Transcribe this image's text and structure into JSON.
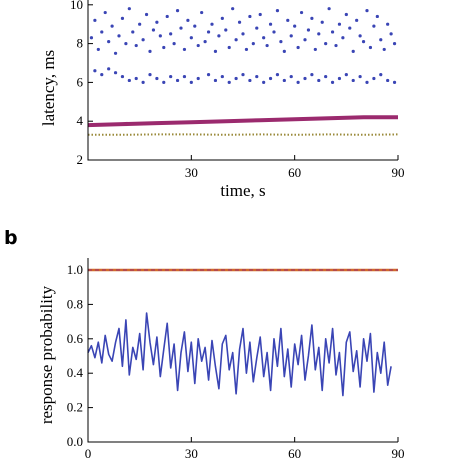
{
  "chart_data": [
    {
      "panel_label": "",
      "type": "scatter",
      "xlabel": "time, s",
      "ylabel": "latency, ms",
      "xlim": [
        0,
        90
      ],
      "ylim": [
        2,
        10
      ],
      "xticks": [
        "30",
        "60",
        "90"
      ],
      "yticks": [
        "2",
        "4",
        "6",
        "8",
        "10"
      ],
      "colors": {
        "dots": "#3a45b5",
        "line_top": "#9b2a6e",
        "line_bottom": "#9a8a3a"
      },
      "series": [
        {
          "values": [
            [
              1,
              8.3
            ],
            [
              2,
              9.2
            ],
            [
              3,
              7.7
            ],
            [
              4,
              8.6
            ],
            [
              5,
              9.6
            ],
            [
              6,
              8.1
            ],
            [
              7,
              8.9
            ],
            [
              8,
              7.5
            ],
            [
              9,
              8.4
            ],
            [
              10,
              9.3
            ],
            [
              11,
              8.0
            ],
            [
              12,
              9.8
            ],
            [
              13,
              8.6
            ],
            [
              14,
              7.9
            ],
            [
              15,
              9.0
            ],
            [
              16,
              8.2
            ],
            [
              17,
              9.5
            ],
            [
              18,
              7.6
            ],
            [
              19,
              8.7
            ],
            [
              20,
              9.1
            ],
            [
              21,
              8.4
            ],
            [
              22,
              7.8
            ],
            [
              23,
              9.4
            ],
            [
              24,
              8.5
            ],
            [
              25,
              8.0
            ],
            [
              26,
              9.7
            ],
            [
              27,
              8.8
            ],
            [
              28,
              7.7
            ],
            [
              29,
              9.2
            ],
            [
              30,
              8.3
            ],
            [
              31,
              8.9
            ],
            [
              32,
              7.9
            ],
            [
              33,
              9.6
            ],
            [
              34,
              8.1
            ],
            [
              35,
              8.6
            ],
            [
              36,
              9.0
            ],
            [
              37,
              7.6
            ],
            [
              38,
              8.4
            ],
            [
              39,
              9.3
            ],
            [
              40,
              8.7
            ],
            [
              41,
              7.8
            ],
            [
              42,
              9.8
            ],
            [
              43,
              8.2
            ],
            [
              44,
              9.1
            ],
            [
              45,
              8.5
            ],
            [
              46,
              7.7
            ],
            [
              47,
              9.4
            ],
            [
              48,
              8.0
            ],
            [
              49,
              8.8
            ],
            [
              50,
              9.5
            ],
            [
              51,
              8.3
            ],
            [
              52,
              7.9
            ],
            [
              53,
              9.0
            ],
            [
              54,
              8.6
            ],
            [
              55,
              9.7
            ],
            [
              56,
              8.1
            ],
            [
              57,
              7.6
            ],
            [
              58,
              9.2
            ],
            [
              59,
              8.4
            ],
            [
              60,
              8.9
            ],
            [
              61,
              7.8
            ],
            [
              62,
              9.6
            ],
            [
              63,
              8.2
            ],
            [
              64,
              8.7
            ],
            [
              65,
              9.3
            ],
            [
              66,
              7.7
            ],
            [
              67,
              8.5
            ],
            [
              68,
              9.1
            ],
            [
              69,
              8.0
            ],
            [
              70,
              9.8
            ],
            [
              71,
              8.6
            ],
            [
              72,
              7.9
            ],
            [
              73,
              9.0
            ],
            [
              74,
              8.3
            ],
            [
              75,
              9.5
            ],
            [
              76,
              8.8
            ],
            [
              77,
              7.6
            ],
            [
              78,
              9.2
            ],
            [
              79,
              8.4
            ],
            [
              80,
              8.1
            ],
            [
              81,
              9.7
            ],
            [
              82,
              7.8
            ],
            [
              83,
              8.9
            ],
            [
              84,
              9.4
            ],
            [
              85,
              8.2
            ],
            [
              86,
              7.7
            ],
            [
              87,
              9.0
            ],
            [
              88,
              8.5
            ],
            [
              89,
              8.0
            ],
            [
              2,
              6.6
            ],
            [
              4,
              6.4
            ],
            [
              6,
              6.7
            ],
            [
              8,
              6.5
            ],
            [
              10,
              6.3
            ],
            [
              12,
              6.1
            ],
            [
              14,
              6.2
            ],
            [
              16,
              6.0
            ],
            [
              18,
              6.4
            ],
            [
              20,
              6.2
            ],
            [
              22,
              6.0
            ],
            [
              24,
              6.3
            ],
            [
              26,
              6.1
            ],
            [
              28,
              6.3
            ],
            [
              30,
              6.0
            ],
            [
              32,
              6.2
            ],
            [
              35,
              6.4
            ],
            [
              37,
              6.1
            ],
            [
              39,
              6.3
            ],
            [
              41,
              6.0
            ],
            [
              43,
              6.2
            ],
            [
              45,
              6.4
            ],
            [
              47,
              6.1
            ],
            [
              49,
              6.3
            ],
            [
              51,
              6.0
            ],
            [
              53,
              6.2
            ],
            [
              55,
              6.4
            ],
            [
              57,
              6.1
            ],
            [
              59,
              6.3
            ],
            [
              61,
              6.0
            ],
            [
              63,
              6.2
            ],
            [
              65,
              6.4
            ],
            [
              67,
              6.1
            ],
            [
              69,
              6.3
            ],
            [
              71,
              6.0
            ],
            [
              73,
              6.2
            ],
            [
              75,
              6.4
            ],
            [
              77,
              6.1
            ],
            [
              79,
              6.3
            ],
            [
              81,
              6.0
            ],
            [
              83,
              6.2
            ],
            [
              85,
              6.4
            ],
            [
              87,
              6.1
            ],
            [
              89,
              6.0
            ]
          ]
        },
        {
          "values": [
            [
              0,
              3.8
            ],
            [
              10,
              3.85
            ],
            [
              20,
              3.9
            ],
            [
              30,
              3.95
            ],
            [
              40,
              4.0
            ],
            [
              50,
              4.05
            ],
            [
              60,
              4.1
            ],
            [
              70,
              4.15
            ],
            [
              80,
              4.2
            ],
            [
              90,
              4.2
            ]
          ]
        },
        {
          "values": [
            [
              0,
              3.3
            ],
            [
              10,
              3.3
            ],
            [
              20,
              3.32
            ],
            [
              30,
              3.32
            ],
            [
              40,
              3.3
            ],
            [
              50,
              3.32
            ],
            [
              60,
              3.3
            ],
            [
              70,
              3.32
            ],
            [
              80,
              3.3
            ],
            [
              90,
              3.32
            ]
          ]
        }
      ]
    },
    {
      "panel_label": "b",
      "type": "line",
      "xlabel": "",
      "ylabel": "response probability",
      "xlim": [
        0,
        90
      ],
      "ylim": [
        0,
        1.0
      ],
      "xticks": [
        "0",
        "30",
        "60",
        "90"
      ],
      "yticks": [
        "0.0",
        "0.2",
        "0.4",
        "0.6",
        "0.8",
        "1.0"
      ],
      "colors": {
        "line_main": "#3a45b5",
        "line_flat_a": "#d06a2a",
        "line_flat_b": "#9b2a6e"
      },
      "series": [
        {
          "values": [
            [
              0,
              0.52
            ],
            [
              1,
              0.56
            ],
            [
              2,
              0.49
            ],
            [
              3,
              0.58
            ],
            [
              4,
              0.46
            ],
            [
              5,
              0.62
            ],
            [
              6,
              0.51
            ],
            [
              7,
              0.47
            ],
            [
              8,
              0.58
            ],
            [
              9,
              0.66
            ],
            [
              10,
              0.44
            ],
            [
              11,
              0.71
            ],
            [
              12,
              0.39
            ],
            [
              13,
              0.55
            ],
            [
              14,
              0.48
            ],
            [
              15,
              0.63
            ],
            [
              16,
              0.42
            ],
            [
              17,
              0.75
            ],
            [
              18,
              0.58
            ],
            [
              19,
              0.45
            ],
            [
              20,
              0.61
            ],
            [
              21,
              0.38
            ],
            [
              22,
              0.54
            ],
            [
              23,
              0.69
            ],
            [
              24,
              0.43
            ],
            [
              25,
              0.57
            ],
            [
              26,
              0.3
            ],
            [
              27,
              0.52
            ],
            [
              28,
              0.64
            ],
            [
              29,
              0.41
            ],
            [
              30,
              0.58
            ],
            [
              31,
              0.34
            ],
            [
              32,
              0.6
            ],
            [
              33,
              0.47
            ],
            [
              34,
              0.55
            ],
            [
              35,
              0.36
            ],
            [
              36,
              0.59
            ],
            [
              37,
              0.44
            ],
            [
              38,
              0.31
            ],
            [
              39,
              0.57
            ],
            [
              40,
              0.62
            ],
            [
              41,
              0.42
            ],
            [
              42,
              0.52
            ],
            [
              43,
              0.28
            ],
            [
              44,
              0.54
            ],
            [
              45,
              0.66
            ],
            [
              46,
              0.4
            ],
            [
              47,
              0.58
            ],
            [
              48,
              0.35
            ],
            [
              49,
              0.49
            ],
            [
              50,
              0.61
            ],
            [
              51,
              0.38
            ],
            [
              52,
              0.52
            ],
            [
              53,
              0.3
            ],
            [
              54,
              0.6
            ],
            [
              55,
              0.44
            ],
            [
              56,
              0.66
            ],
            [
              57,
              0.38
            ],
            [
              58,
              0.54
            ],
            [
              59,
              0.32
            ],
            [
              60,
              0.57
            ],
            [
              61,
              0.45
            ],
            [
              62,
              0.62
            ],
            [
              63,
              0.36
            ],
            [
              64,
              0.5
            ],
            [
              65,
              0.68
            ],
            [
              66,
              0.42
            ],
            [
              67,
              0.55
            ],
            [
              68,
              0.3
            ],
            [
              69,
              0.6
            ],
            [
              70,
              0.46
            ],
            [
              71,
              0.66
            ],
            [
              72,
              0.39
            ],
            [
              73,
              0.52
            ],
            [
              74,
              0.27
            ],
            [
              75,
              0.58
            ],
            [
              76,
              0.64
            ],
            [
              77,
              0.41
            ],
            [
              78,
              0.53
            ],
            [
              79,
              0.32
            ],
            [
              80,
              0.6
            ],
            [
              81,
              0.47
            ],
            [
              82,
              0.63
            ],
            [
              83,
              0.29
            ],
            [
              84,
              0.52
            ],
            [
              85,
              0.4
            ],
            [
              86,
              0.58
            ],
            [
              87,
              0.33
            ],
            [
              88,
              0.44
            ]
          ]
        },
        {
          "values": [
            [
              0,
              1.0
            ],
            [
              90,
              1.0
            ]
          ]
        },
        {
          "values": [
            [
              0,
              1.0
            ],
            [
              90,
              1.0
            ]
          ]
        }
      ]
    }
  ]
}
